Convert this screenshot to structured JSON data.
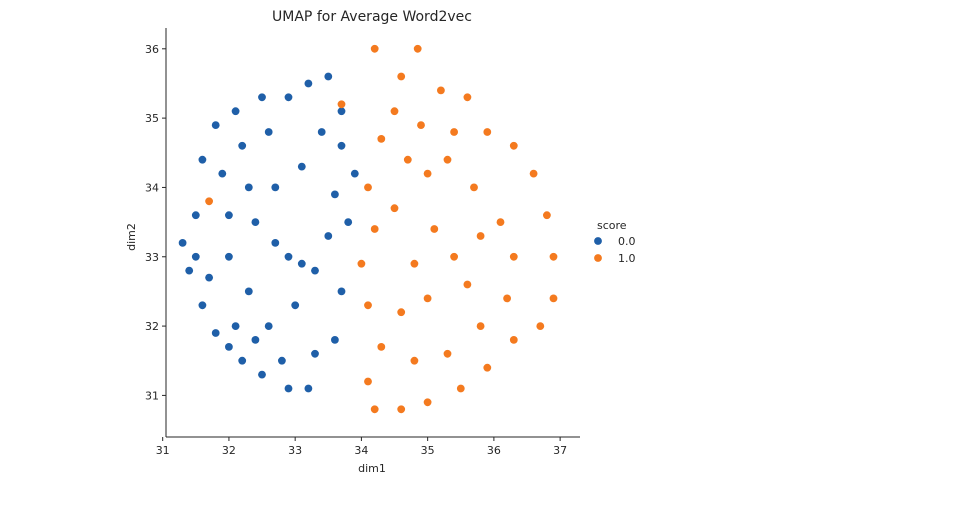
{
  "chart_data": {
    "type": "scatter",
    "title": "UMAP for  Average Word2vec",
    "xlabel": "dim1",
    "ylabel": "dim2",
    "xlim": [
      31.05,
      37.3
    ],
    "ylim": [
      30.4,
      36.3
    ],
    "xticks": [
      31,
      32,
      33,
      34,
      35,
      36,
      37
    ],
    "yticks": [
      31,
      32,
      33,
      34,
      35,
      36
    ],
    "grid": false,
    "legend": {
      "title": "score",
      "placement": "right",
      "entries": [
        "0.0",
        "1.0"
      ]
    },
    "series": [
      {
        "name": "0.0",
        "color": "#1f5fa8",
        "points": [
          [
            31.3,
            33.2
          ],
          [
            31.5,
            33.6
          ],
          [
            31.6,
            34.4
          ],
          [
            31.8,
            34.9
          ],
          [
            32.1,
            35.1
          ],
          [
            32.5,
            35.3
          ],
          [
            32.9,
            35.3
          ],
          [
            33.2,
            35.5
          ],
          [
            31.4,
            32.8
          ],
          [
            31.6,
            32.3
          ],
          [
            31.8,
            31.9
          ],
          [
            32.0,
            31.7
          ],
          [
            32.2,
            31.5
          ],
          [
            32.5,
            31.3
          ],
          [
            32.9,
            31.1
          ],
          [
            33.2,
            31.1
          ],
          [
            32.0,
            33.0
          ],
          [
            32.4,
            33.5
          ],
          [
            32.7,
            34.0
          ],
          [
            33.1,
            34.3
          ],
          [
            33.4,
            34.8
          ],
          [
            32.3,
            32.5
          ],
          [
            32.6,
            32.0
          ],
          [
            33.0,
            32.3
          ],
          [
            33.3,
            32.8
          ],
          [
            33.5,
            33.3
          ],
          [
            33.6,
            33.9
          ],
          [
            33.7,
            34.6
          ],
          [
            33.5,
            35.6
          ],
          [
            33.3,
            31.6
          ],
          [
            33.6,
            31.8
          ],
          [
            33.7,
            32.5
          ],
          [
            33.8,
            33.5
          ],
          [
            33.9,
            34.2
          ],
          [
            33.7,
            35.1
          ],
          [
            31.9,
            34.2
          ],
          [
            32.2,
            34.6
          ],
          [
            32.6,
            34.8
          ],
          [
            32.9,
            33.0
          ],
          [
            33.1,
            32.9
          ],
          [
            32.1,
            32.0
          ],
          [
            32.4,
            31.8
          ],
          [
            32.8,
            31.5
          ],
          [
            31.5,
            33.0
          ],
          [
            31.7,
            32.7
          ],
          [
            32.0,
            33.6
          ],
          [
            32.3,
            34.0
          ],
          [
            32.7,
            33.2
          ]
        ]
      },
      {
        "name": "1.0",
        "color": "#f47a1f",
        "points": [
          [
            34.2,
            36.0
          ],
          [
            34.85,
            36.0
          ],
          [
            34.6,
            35.6
          ],
          [
            35.2,
            35.4
          ],
          [
            35.6,
            35.3
          ],
          [
            35.9,
            34.8
          ],
          [
            36.3,
            34.6
          ],
          [
            36.6,
            34.2
          ],
          [
            36.8,
            33.6
          ],
          [
            36.9,
            33.0
          ],
          [
            36.9,
            32.4
          ],
          [
            36.7,
            32.0
          ],
          [
            36.3,
            31.8
          ],
          [
            35.9,
            31.4
          ],
          [
            35.5,
            31.1
          ],
          [
            35.0,
            30.9
          ],
          [
            34.6,
            30.8
          ],
          [
            34.2,
            30.8
          ],
          [
            34.1,
            31.2
          ],
          [
            34.3,
            31.7
          ],
          [
            34.1,
            32.3
          ],
          [
            34.0,
            32.9
          ],
          [
            34.2,
            33.4
          ],
          [
            34.1,
            34.0
          ],
          [
            34.3,
            34.7
          ],
          [
            34.5,
            35.1
          ],
          [
            34.9,
            34.9
          ],
          [
            35.3,
            34.4
          ],
          [
            35.7,
            34.0
          ],
          [
            36.1,
            33.5
          ],
          [
            36.3,
            33.0
          ],
          [
            36.2,
            32.4
          ],
          [
            35.8,
            32.0
          ],
          [
            35.3,
            31.6
          ],
          [
            34.8,
            31.5
          ],
          [
            34.6,
            32.2
          ],
          [
            34.8,
            32.9
          ],
          [
            35.1,
            33.4
          ],
          [
            35.4,
            33.0
          ],
          [
            35.6,
            32.6
          ],
          [
            35.0,
            32.4
          ],
          [
            34.5,
            33.7
          ],
          [
            35.0,
            34.2
          ],
          [
            35.4,
            34.8
          ],
          [
            34.7,
            34.4
          ],
          [
            35.8,
            33.3
          ],
          [
            33.7,
            35.2
          ],
          [
            31.7,
            33.8
          ]
        ]
      }
    ]
  }
}
